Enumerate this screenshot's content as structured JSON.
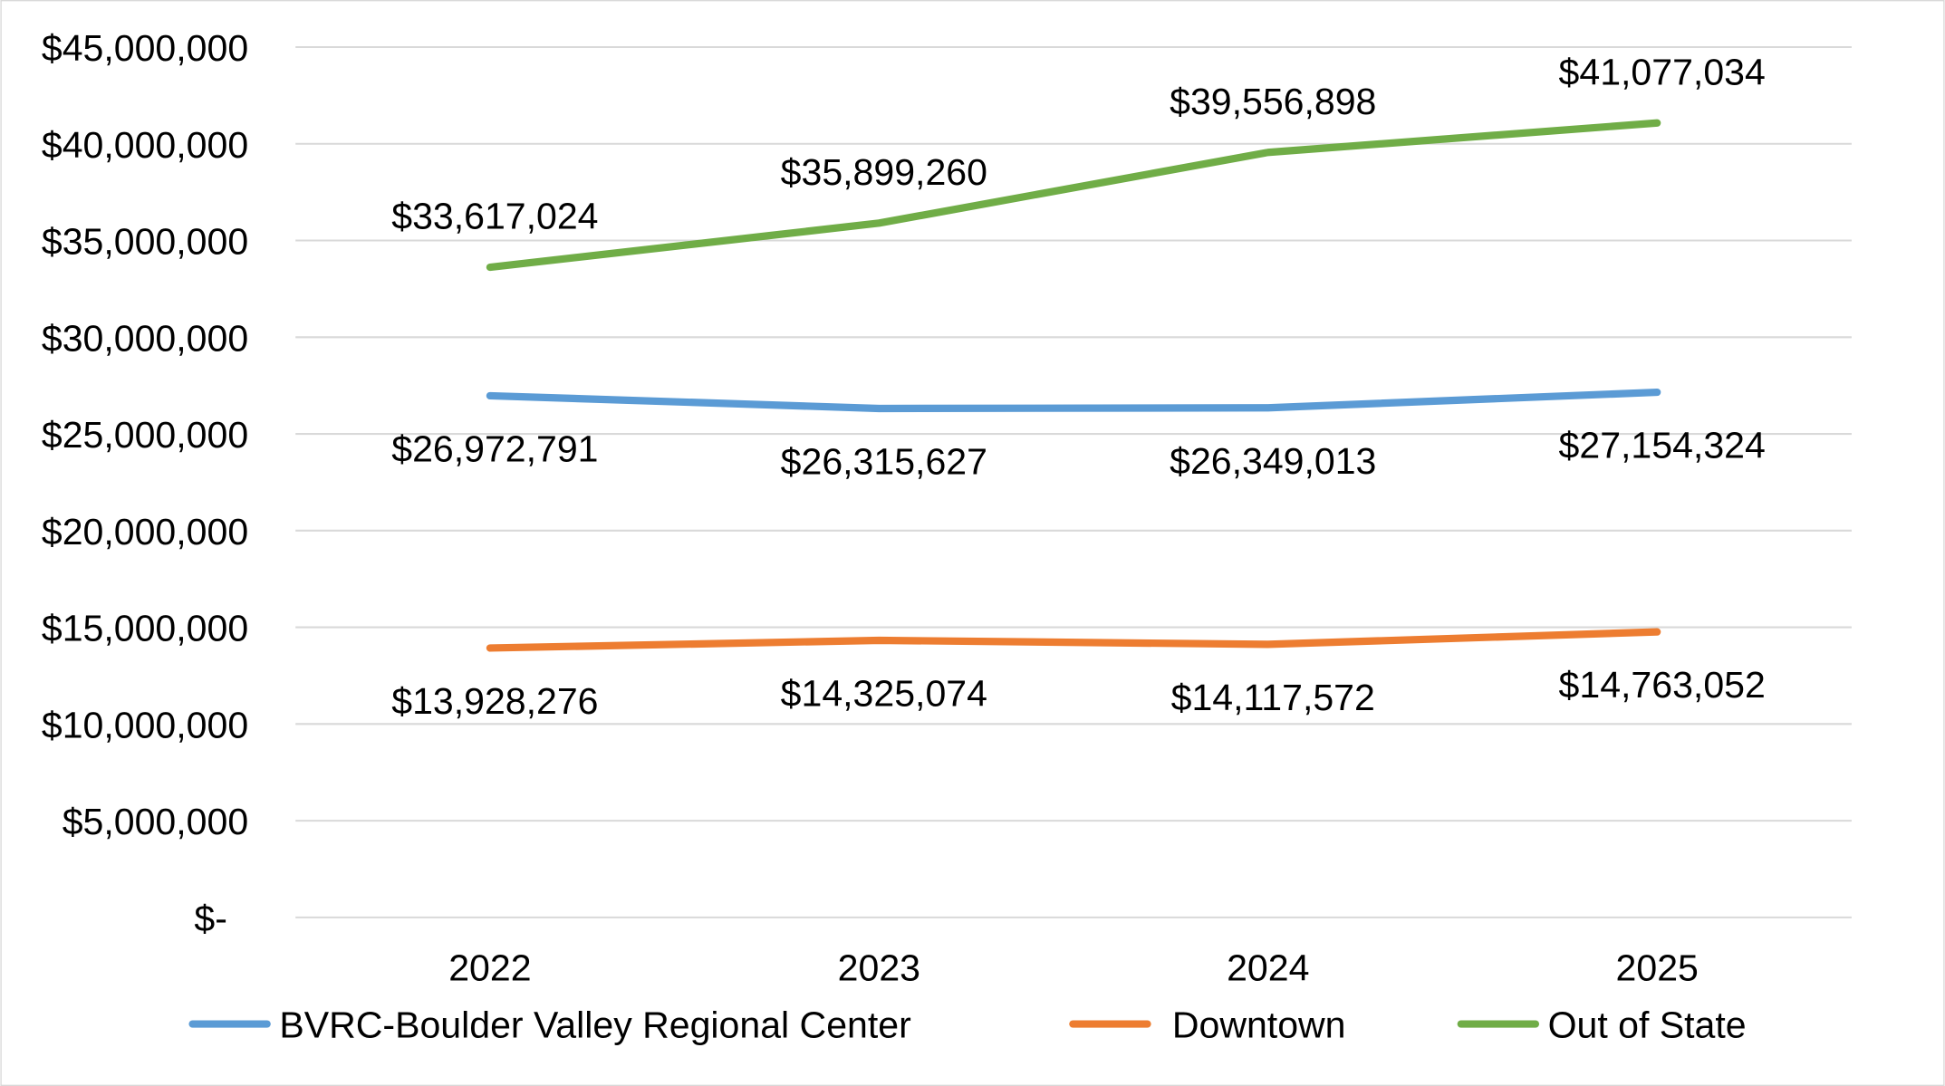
{
  "chart_data": {
    "type": "line",
    "title": "",
    "xlabel": "",
    "ylabel": "",
    "categories": [
      "2022",
      "2023",
      "2024",
      "2025"
    ],
    "ylim": [
      0,
      45000000
    ],
    "yticks": [
      0,
      5000000,
      10000000,
      15000000,
      20000000,
      25000000,
      30000000,
      35000000,
      40000000,
      45000000
    ],
    "ytick_labels": [
      "$-",
      "$5,000,000",
      "$10,000,000",
      "$15,000,000",
      "$20,000,000",
      "$25,000,000",
      "$30,000,000",
      "$35,000,000",
      "$40,000,000",
      "$45,000,000"
    ],
    "grid": true,
    "legend_position": "bottom",
    "series": [
      {
        "name": "BVRC-Boulder Valley Regional Center",
        "color": "#5B9BD5",
        "label_side": "below",
        "values": [
          26972791,
          26315627,
          26349013,
          27154324
        ],
        "labels": [
          "$26,972,791",
          "$26,315,627",
          "$26,349,013",
          "$27,154,324"
        ]
      },
      {
        "name": "Downtown",
        "color": "#ED7D31",
        "label_side": "below",
        "values": [
          13928276,
          14325074,
          14117572,
          14763052
        ],
        "labels": [
          "$13,928,276",
          "$14,325,074",
          "$14,117,572",
          "$14,763,052"
        ]
      },
      {
        "name": "Out of State",
        "color": "#70AD47",
        "label_side": "above",
        "values": [
          33617024,
          35899260,
          39556898,
          41077034
        ],
        "labels": [
          "$33,617,024",
          "$35,899,260",
          "$39,556,898",
          "$41,077,034"
        ]
      }
    ]
  }
}
